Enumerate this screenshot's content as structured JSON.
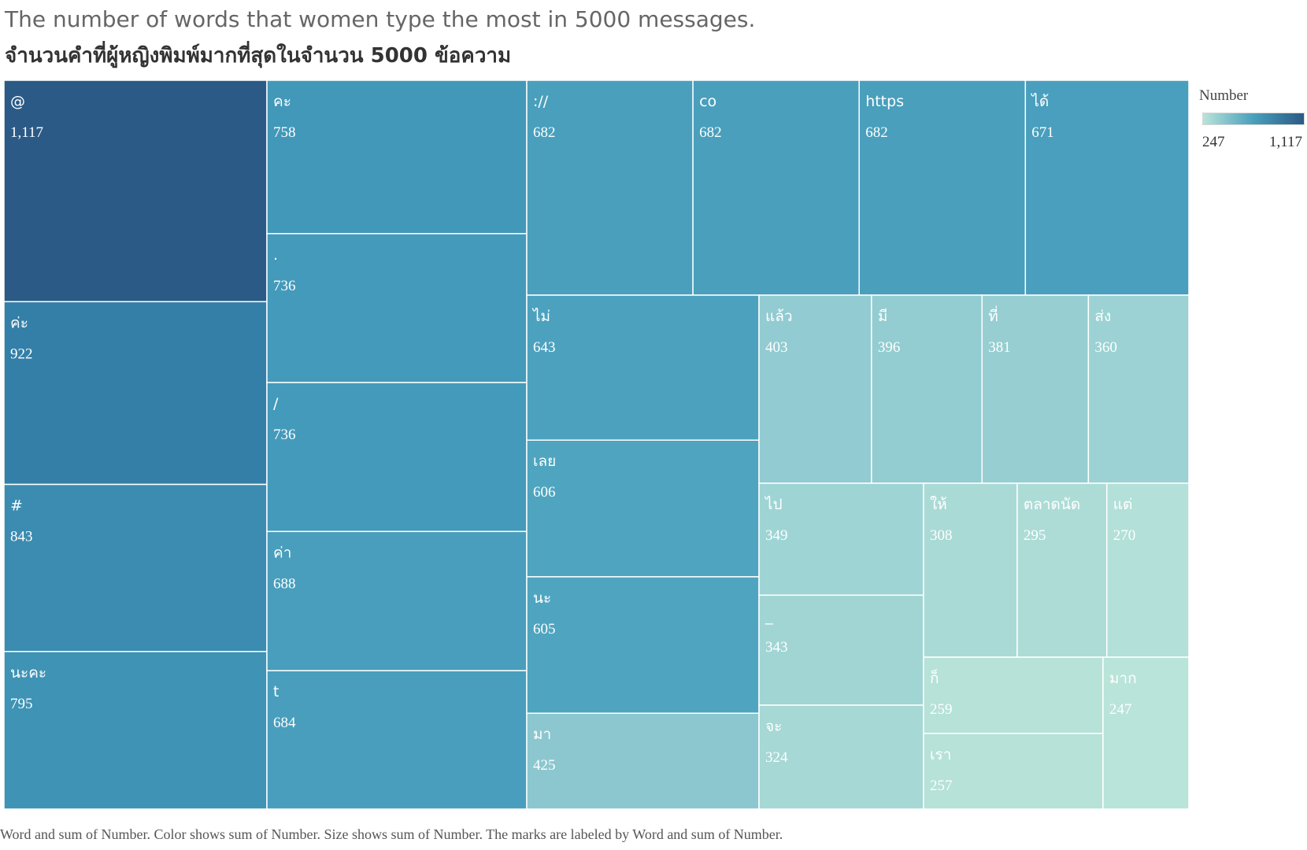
{
  "title_en": "The number of words that women type the most in 5000 messages.",
  "title_th": "จำนวนคำที่ผู้หญิงพิมพ์มากที่สุดในจำนวน 5000 ข้อความ",
  "caption": "Word and sum of Number.  Color shows sum of Number.  Size shows sum of Number.  The marks are labeled by Word and sum of Number.",
  "legend": {
    "title": "Number",
    "min_label": "247",
    "max_label": "1,117",
    "color_low": "#b9e4d9",
    "color_high": "#2b5a86"
  },
  "chart_data": {
    "type": "treemap",
    "measure": "sum of Number",
    "words": [
      "@",
      "ค่ะ",
      "#",
      "นะคะ",
      "คะ",
      ".",
      "/",
      "ค่า",
      "t",
      "://",
      "co",
      "https",
      "ได้",
      "ไม่",
      "เลย",
      "นะ",
      "มา",
      "แล้ว",
      "มี",
      "ที่",
      "ส่ง",
      "ไป",
      "_",
      "จะ",
      "ให้",
      "ตลาดนัด",
      "แต่",
      "ก็",
      "เรา",
      "มาก"
    ],
    "values": [
      1117,
      922,
      843,
      795,
      758,
      736,
      736,
      688,
      684,
      682,
      682,
      682,
      671,
      643,
      606,
      605,
      425,
      403,
      396,
      381,
      360,
      349,
      343,
      324,
      308,
      295,
      270,
      259,
      257,
      247
    ],
    "labels": [
      "1,117",
      "922",
      "843",
      "795",
      "758",
      "736",
      "736",
      "688",
      "684",
      "682",
      "682",
      "682",
      "671",
      "643",
      "606",
      "605",
      "425",
      "403",
      "396",
      "381",
      "360",
      "349",
      "343",
      "324",
      "308",
      "295",
      "270",
      "259",
      "257",
      "247"
    ],
    "color_range": [
      247,
      1117
    ]
  }
}
